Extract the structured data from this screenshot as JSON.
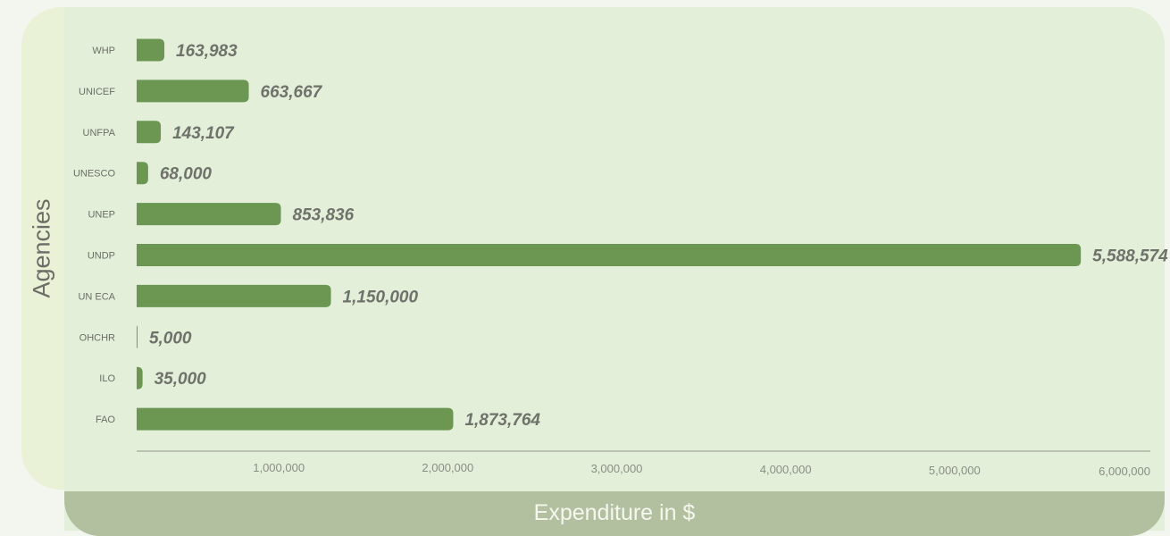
{
  "chart_data": {
    "type": "bar",
    "orientation": "horizontal",
    "categories": [
      "WHP",
      "UNICEF",
      "UNFPA",
      "UNESCO",
      "UNEP",
      "UNDP",
      "UN ECA",
      "OHCHR",
      "ILO",
      "FAO"
    ],
    "values": [
      163983,
      663667,
      143107,
      68000,
      853836,
      5588574,
      1150000,
      5000,
      35000,
      1873764
    ],
    "value_labels": [
      "163,983",
      "663,667",
      "143,107",
      "68,000",
      "853,836",
      "5,588,574",
      "1,150,000",
      "5,000",
      "35,000",
      "1,873,764"
    ],
    "xlabel": "Expenditure in $",
    "ylabel": "Agencies",
    "xlim": [
      0,
      6000000
    ],
    "x_ticks": [
      1000000,
      2000000,
      3000000,
      4000000,
      5000000,
      6000000
    ],
    "x_tick_labels": [
      "1,000,000",
      "2,000,000",
      "3,000,000",
      "4,000,000",
      "5,000,000",
      "6,000,000"
    ],
    "grid": false,
    "colors": {
      "bar": "#6b9753",
      "axis_line": "#a3a89a",
      "tick_text": "#8a8d84",
      "last_tick_text": "#c4c8bc",
      "value_text": "#6f726b"
    }
  }
}
